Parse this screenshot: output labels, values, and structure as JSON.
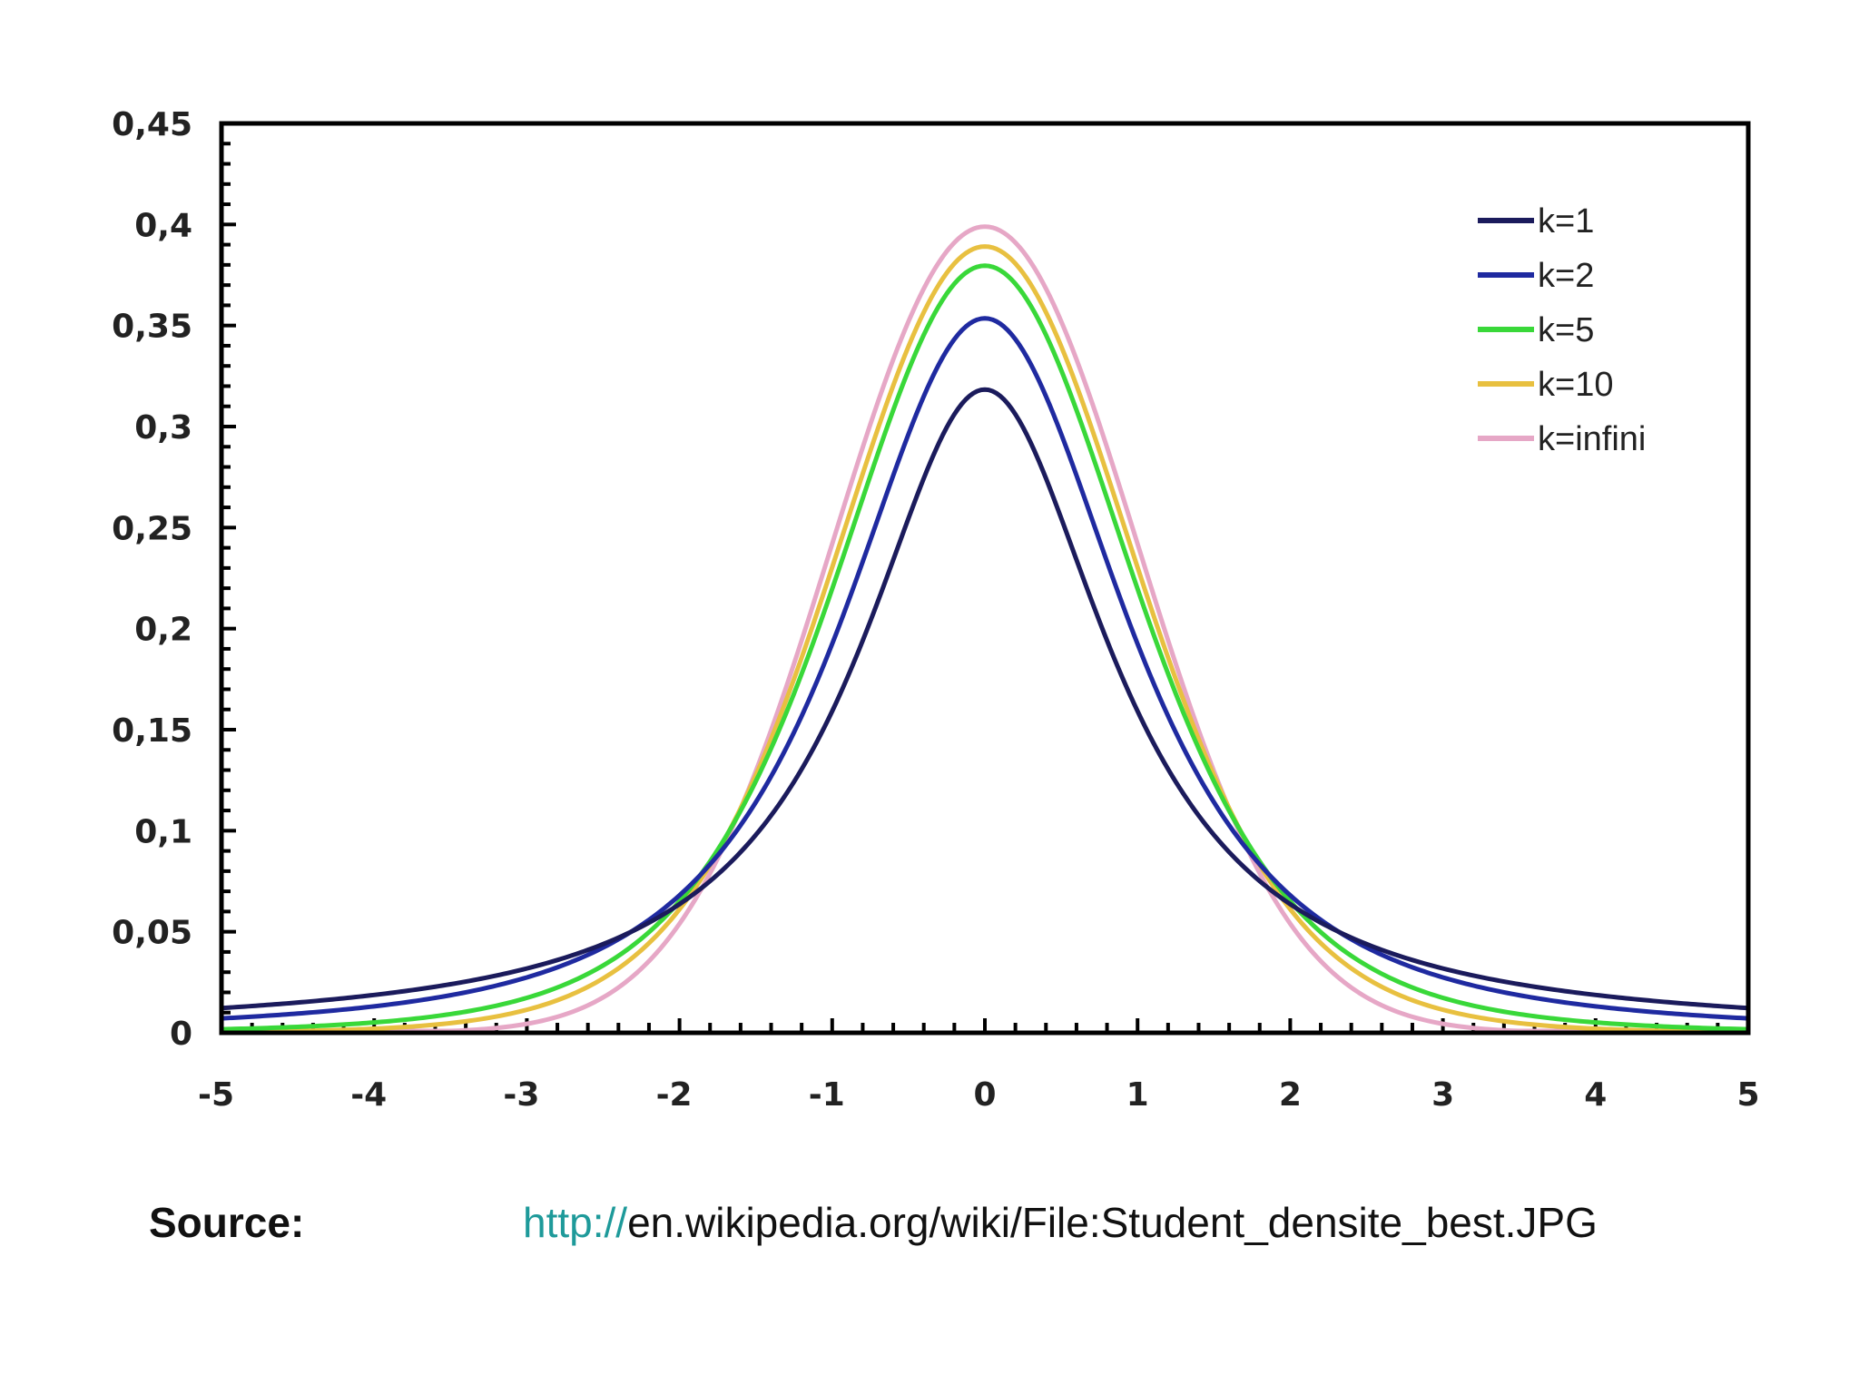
{
  "chart_data": {
    "type": "line",
    "x_range": [
      -5,
      5
    ],
    "ylim": [
      0,
      0.45
    ],
    "grid": false,
    "legend_position": "top-right",
    "x_ticks": [
      "-5",
      "-4",
      "-3",
      "-2",
      "-1",
      "0",
      "1",
      "2",
      "3",
      "4",
      "5"
    ],
    "y_ticks": [
      "0",
      "0,05",
      "0,1",
      "0,15",
      "0,2",
      "0,25",
      "0,3",
      "0,35",
      "0,4",
      "0,45"
    ],
    "series": [
      {
        "name": "k=1",
        "color": "#1b1b5c",
        "df": 1
      },
      {
        "name": "k=2",
        "color": "#1f2aa0",
        "df": 2
      },
      {
        "name": "k=5",
        "color": "#39d839",
        "df": 5
      },
      {
        "name": "k=10",
        "color": "#e8c040",
        "df": 10
      },
      {
        "name": "k=infini",
        "color": "#e6a7c6",
        "df": "infinity"
      }
    ],
    "sample_points": {
      "x": [
        -5,
        -4,
        -3,
        -2,
        -1,
        0,
        1,
        2,
        3,
        4,
        5
      ],
      "k=1": [
        0.0122,
        0.0187,
        0.0318,
        0.0637,
        0.1592,
        0.3183,
        0.1592,
        0.0637,
        0.0318,
        0.0187,
        0.0122
      ],
      "k=2": [
        0.0071,
        0.0131,
        0.0274,
        0.068,
        0.1925,
        0.3536,
        0.1925,
        0.068,
        0.0274,
        0.0131,
        0.0071
      ],
      "k=5": [
        0.0018,
        0.0051,
        0.0173,
        0.0651,
        0.2197,
        0.3796,
        0.2197,
        0.0651,
        0.0173,
        0.0051,
        0.0018
      ],
      "k=10": [
        0.0004,
        0.002,
        0.0114,
        0.0611,
        0.2304,
        0.3891,
        0.2304,
        0.0611,
        0.0114,
        0.002,
        0.0004
      ],
      "k=infini": [
        1.5e-06,
        0.0001,
        0.0044,
        0.054,
        0.242,
        0.3989,
        0.242,
        0.054,
        0.0044,
        0.0001,
        1.5e-06
      ]
    }
  },
  "source": {
    "label": "Source:",
    "url_scheme": "http://",
    "url_rest": "en.wikipedia.org/wiki/File:Student_densite_best.JPG"
  }
}
